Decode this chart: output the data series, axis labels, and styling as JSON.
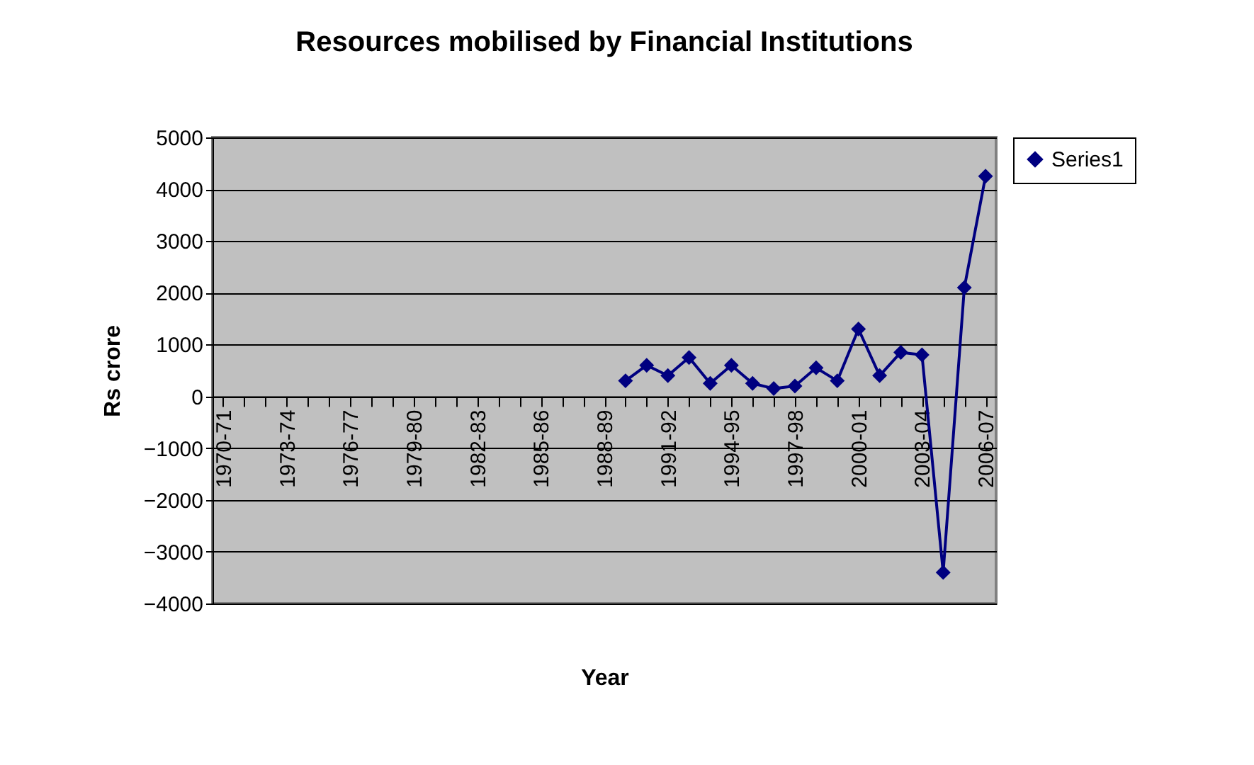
{
  "chart_data": {
    "type": "line",
    "title": "Resources mobilised by Financial Institutions",
    "xlabel": "Year",
    "ylabel": "Rs crore",
    "categories": [
      "1970-71",
      null,
      null,
      "1973-74",
      null,
      null,
      "1976-77",
      null,
      null,
      "1979-80",
      null,
      null,
      "1982-83",
      null,
      null,
      "1985-86",
      null,
      null,
      "1988-89",
      null,
      null,
      "1991-92",
      null,
      null,
      "1994-95",
      null,
      null,
      "1997-98",
      null,
      null,
      "2000-01",
      null,
      null,
      "2003-04",
      null,
      null,
      "2006-07"
    ],
    "series": [
      {
        "name": "Series1",
        "color": "#000080",
        "values": [
          null,
          null,
          null,
          null,
          null,
          null,
          null,
          null,
          null,
          null,
          null,
          null,
          null,
          null,
          null,
          null,
          null,
          null,
          null,
          300,
          600,
          400,
          750,
          250,
          600,
          250,
          150,
          200,
          550,
          300,
          1300,
          400,
          850,
          800,
          -3400,
          2100,
          4250
        ]
      }
    ],
    "ylim": [
      -4000,
      5000
    ],
    "yticks": [
      -4000,
      -3000,
      -2000,
      -1000,
      0,
      1000,
      2000,
      3000,
      4000,
      5000
    ],
    "grid": "y",
    "legend": "right",
    "marker": "diamond",
    "line_style": "solid"
  }
}
